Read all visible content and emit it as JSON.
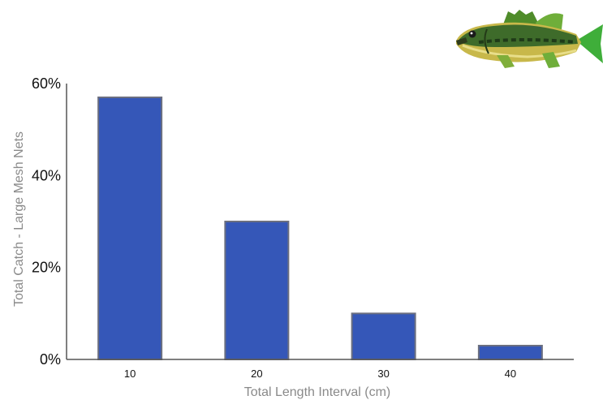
{
  "chart_data": {
    "type": "bar",
    "categories": [
      "10",
      "20",
      "30",
      "40"
    ],
    "values": [
      57,
      30,
      10,
      3
    ],
    "title": "",
    "xlabel": "Total Length Interval (cm)",
    "ylabel": "Total Catch - Large Mesh Nets",
    "ylim": [
      0,
      60
    ],
    "yticks": [
      "0%",
      "20%",
      "40%",
      "60%"
    ],
    "ytick_values": [
      0,
      20,
      40,
      60
    ],
    "grid": false,
    "legend": "none",
    "colors": {
      "bar": "#3557b8",
      "bar_edge": "#6b6f80",
      "axis": "#555555"
    }
  },
  "decoration": {
    "icon": "largemouth-bass-fish-icon"
  }
}
